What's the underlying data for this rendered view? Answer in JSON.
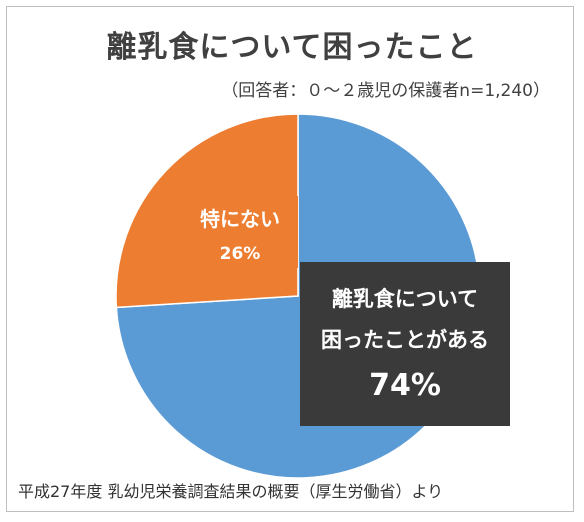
{
  "title": "離乳食について困ったこと",
  "subtitle": "（回答者：０～２歳児の保護者n=1,240）",
  "source": "平成27年度 乳幼児栄養調査結果の概要（厚生労働省）より",
  "colors": {
    "blue": "#5b9bd5",
    "orange": "#ed7d31",
    "dark_label": "#3a3a3a"
  },
  "chart_data": {
    "type": "pie",
    "title": "離乳食について困ったこと",
    "subtitle": "（回答者：０～２歳児の保護者n=1,240）",
    "slices": [
      {
        "label_lines": [
          "離乳食について",
          "困ったことがある"
        ],
        "value": 74,
        "value_label": "74%",
        "color": "#5b9bd5"
      },
      {
        "label_lines": [
          "特にない"
        ],
        "value": 26,
        "value_label": "26%",
        "color": "#ed7d31"
      }
    ]
  }
}
